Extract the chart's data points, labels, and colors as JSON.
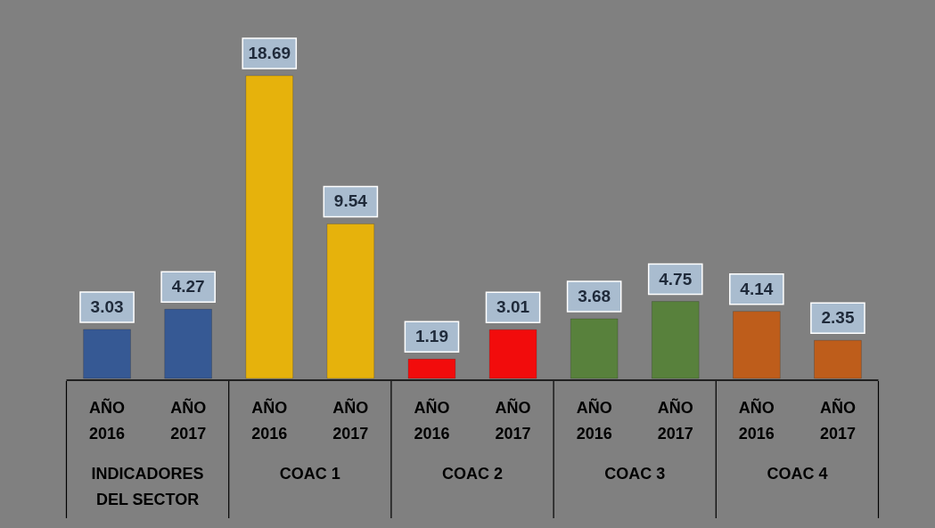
{
  "chart_data": {
    "type": "bar",
    "categories": [
      "AÑO 2016",
      "AÑO 2017",
      "AÑO 2016",
      "AÑO 2017",
      "AÑO 2016",
      "AÑO 2017",
      "AÑO 2016",
      "AÑO 2017",
      "AÑO 2016",
      "AÑO 2017"
    ],
    "values": [
      3.03,
      4.27,
      18.69,
      9.54,
      1.19,
      3.01,
      3.68,
      4.75,
      4.14,
      2.35
    ],
    "colors": [
      "#2f5597",
      "#2f5597",
      "#f2b800",
      "#f2b800",
      "#ff0000",
      "#ff0000",
      "#548235",
      "#548235",
      "#c55a11",
      "#c55a11"
    ],
    "data_labels": true,
    "annotations": [
      "INDICADORES DEL SECTOR",
      "COAC 1",
      "COAC 2",
      "COAC 3",
      "COAC 4"
    ]
  }
}
